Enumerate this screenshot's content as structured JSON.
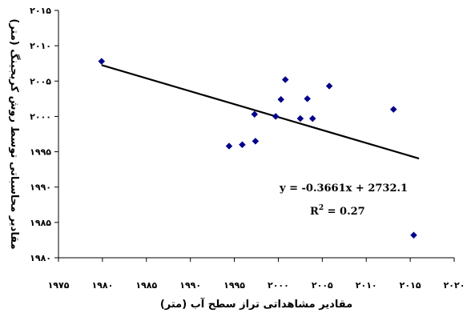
{
  "chart_data": {
    "type": "scatter",
    "xlabel": "مقادیر مشاهداتی تراز سطح آب (متر)",
    "ylabel": "مقادیر محاسباتی توسط روش کریجینگ (متر)",
    "xlim": [
      1975,
      2020
    ],
    "ylim": [
      1980,
      2015
    ],
    "x_ticks": [
      1975,
      1980,
      1985,
      1990,
      1995,
      2000,
      2005,
      2010,
      2015,
      2020
    ],
    "y_ticks": [
      1980,
      1985,
      1990,
      1995,
      2000,
      2005,
      2010,
      2015
    ],
    "x_tick_labels": [
      "۱۹۷۵",
      "۱۹۸۰",
      "۱۹۸۵",
      "۱۹۹۰",
      "۱۹۹۵",
      "۲۰۰۰",
      "۲۰۰۵",
      "۲۰۱۰",
      "۲۰۱۵",
      "۲۰۲۰"
    ],
    "y_tick_labels": [
      "۱۹۸۰",
      "۱۹۸۵",
      "۱۹۹۰",
      "۱۹۹۵",
      "۲۰۰۰",
      "۲۰۰۵",
      "۲۰۱۰",
      "۲۰۱۵"
    ],
    "series": [
      {
        "marker": "diamond",
        "color": "#00008B",
        "points": [
          [
            1979.9,
            2007.8
          ],
          [
            1994.4,
            1995.8
          ],
          [
            1995.9,
            1996.0
          ],
          [
            1997.3,
            2000.3
          ],
          [
            1997.4,
            1996.5
          ],
          [
            1999.7,
            2000.0
          ],
          [
            2000.3,
            2002.4
          ],
          [
            2000.8,
            2005.2
          ],
          [
            2002.5,
            1999.7
          ],
          [
            2003.3,
            2002.5
          ],
          [
            2003.9,
            1999.7
          ],
          [
            2005.8,
            2004.3
          ],
          [
            2013.1,
            2001.0
          ],
          [
            2015.4,
            1983.2
          ]
        ]
      }
    ],
    "trendline": {
      "slope": -0.3661,
      "intercept": 2732.1,
      "x_range": [
        1979.9,
        2016.0
      ],
      "color": "#000000"
    },
    "annotations": {
      "equation": "y = -0.3661x + 2732.1",
      "r2_label": "R",
      "r2_sup": "2",
      "r2_value": " = 0.27"
    },
    "grid": false
  }
}
